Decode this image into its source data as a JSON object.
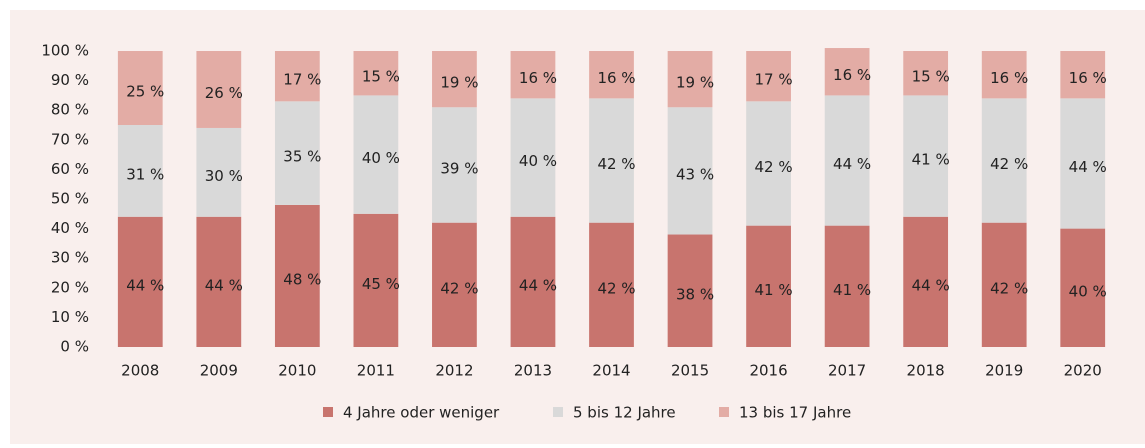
{
  "chart_data": {
    "type": "stacked_bar",
    "categories": [
      "2008",
      "2009",
      "2010",
      "2011",
      "2012",
      "2013",
      "2014",
      "2015",
      "2016",
      "2017",
      "2018",
      "2019",
      "2020"
    ],
    "series": [
      {
        "name": "4 Jahre oder weniger",
        "color": "#c8746e",
        "values": [
          44,
          44,
          48,
          45,
          42,
          44,
          42,
          38,
          41,
          41,
          44,
          42,
          40
        ],
        "value_labels": [
          "44 %",
          "44 %",
          "48 %",
          "45 %",
          "42 %",
          "44 %",
          "42 %",
          "38 %",
          "41 %",
          "41 %",
          "44 %",
          "42 %",
          "40 %"
        ]
      },
      {
        "name": "5 bis 12 Jahre",
        "color": "#d9d9d9",
        "values": [
          31,
          30,
          35,
          40,
          39,
          40,
          42,
          43,
          42,
          44,
          41,
          42,
          44
        ],
        "value_labels": [
          "31 %",
          "30 %",
          "35 %",
          "40 %",
          "39 %",
          "40 %",
          "42 %",
          "43 %",
          "42 %",
          "44 %",
          "41 %",
          "42 %",
          "44 %"
        ]
      },
      {
        "name": "13 bis 17 Jahre",
        "color": "#e3aca5",
        "values": [
          25,
          26,
          17,
          15,
          19,
          16,
          16,
          19,
          17,
          16,
          15,
          16,
          16
        ],
        "value_labels": [
          "25 %",
          "26 %",
          "17 %",
          "15 %",
          "19 %",
          "16 %",
          "16 %",
          "19 %",
          "17 %",
          "16 %",
          "15 %",
          "16 %",
          "16 %"
        ]
      }
    ],
    "ylim": [
      0,
      100
    ],
    "yticks": [
      {
        "value": 0,
        "label": "0 %"
      },
      {
        "value": 10,
        "label": "10 %"
      },
      {
        "value": 20,
        "label": "20 %"
      },
      {
        "value": 30,
        "label": "30 %"
      },
      {
        "value": 40,
        "label": "40 %"
      },
      {
        "value": 50,
        "label": "50 %"
      },
      {
        "value": 60,
        "label": "60 %"
      },
      {
        "value": 70,
        "label": "70 %"
      },
      {
        "value": 80,
        "label": "80 %"
      },
      {
        "value": 90,
        "label": "90 %"
      },
      {
        "value": 100,
        "label": "100 %"
      }
    ],
    "legend": "bottom"
  }
}
